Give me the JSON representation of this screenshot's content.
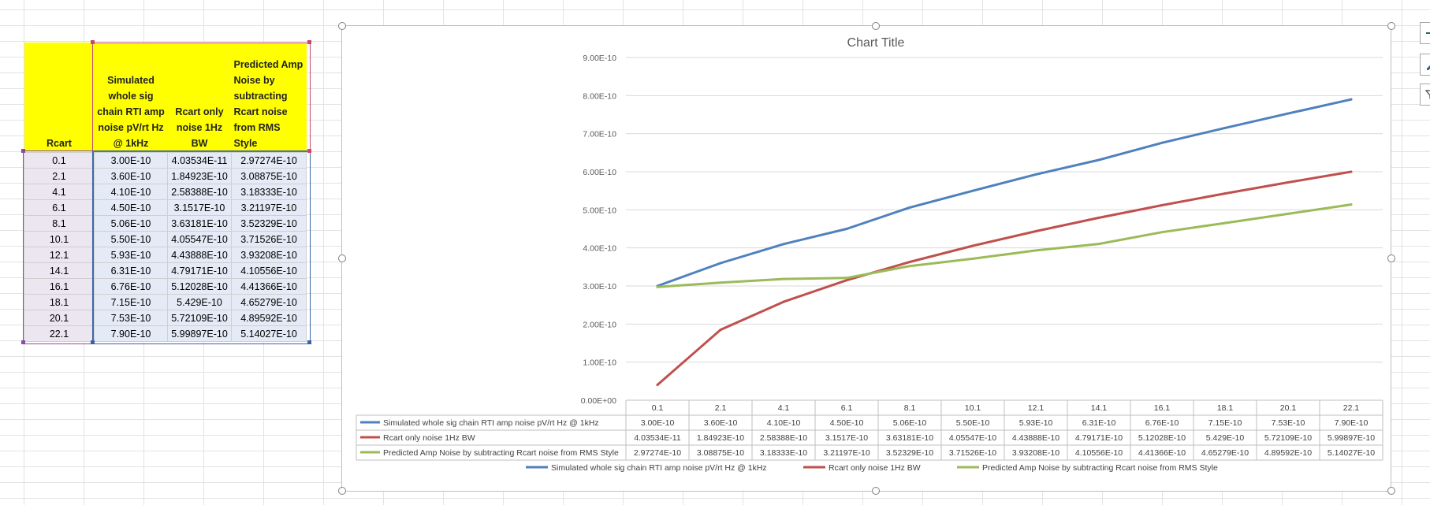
{
  "table": {
    "headers": [
      "Rcart",
      "Simulated whole sig chain RTI amp noise pV/rt Hz @ 1kHz",
      "Rcart only noise 1Hz BW",
      "Predicted Amp Noise by subtracting Rcart noise from RMS Style"
    ],
    "rows": [
      [
        "0.1",
        "3.00E-10",
        "4.03534E-11",
        "2.97274E-10"
      ],
      [
        "2.1",
        "3.60E-10",
        "1.84923E-10",
        "3.08875E-10"
      ],
      [
        "4.1",
        "4.10E-10",
        "2.58388E-10",
        "3.18333E-10"
      ],
      [
        "6.1",
        "4.50E-10",
        "3.1517E-10",
        "3.21197E-10"
      ],
      [
        "8.1",
        "5.06E-10",
        "3.63181E-10",
        "3.52329E-10"
      ],
      [
        "10.1",
        "5.50E-10",
        "4.05547E-10",
        "3.71526E-10"
      ],
      [
        "12.1",
        "5.93E-10",
        "4.43888E-10",
        "3.93208E-10"
      ],
      [
        "14.1",
        "6.31E-10",
        "4.79171E-10",
        "4.10556E-10"
      ],
      [
        "16.1",
        "6.76E-10",
        "5.12028E-10",
        "4.41366E-10"
      ],
      [
        "18.1",
        "7.15E-10",
        "5.429E-10",
        "4.65279E-10"
      ],
      [
        "20.1",
        "7.53E-10",
        "5.72109E-10",
        "4.89592E-10"
      ],
      [
        "22.1",
        "7.90E-10",
        "5.99897E-10",
        "5.14027E-10"
      ]
    ]
  },
  "chart_data": {
    "type": "line",
    "title": "Chart Title",
    "categories": [
      "0.1",
      "2.1",
      "4.1",
      "6.1",
      "8.1",
      "10.1",
      "12.1",
      "14.1",
      "16.1",
      "18.1",
      "20.1",
      "22.1"
    ],
    "ylim": [
      0,
      9e-10
    ],
    "y_ticks": [
      "0.00E+00",
      "1.00E-10",
      "2.00E-10",
      "3.00E-10",
      "4.00E-10",
      "5.00E-10",
      "6.00E-10",
      "7.00E-10",
      "8.00E-10",
      "9.00E-10"
    ],
    "grid": true,
    "legend_position": "bottom",
    "data_table": true,
    "series": [
      {
        "name": "Simulated whole sig chain RTI amp noise pV/rt Hz @ 1kHz",
        "color": "#4f81bd",
        "values": [
          3e-10,
          3.6e-10,
          4.1e-10,
          4.5e-10,
          5.06e-10,
          5.5e-10,
          5.93e-10,
          6.31e-10,
          6.76e-10,
          7.15e-10,
          7.53e-10,
          7.9e-10
        ],
        "labels": [
          "3.00E-10",
          "3.60E-10",
          "4.10E-10",
          "4.50E-10",
          "5.06E-10",
          "5.50E-10",
          "5.93E-10",
          "6.31E-10",
          "6.76E-10",
          "7.15E-10",
          "7.53E-10",
          "7.90E-10"
        ]
      },
      {
        "name": "Rcart only noise 1Hz BW",
        "color": "#c0504d",
        "values": [
          4.03534e-11,
          1.84923e-10,
          2.58388e-10,
          3.1517e-10,
          3.63181e-10,
          4.05547e-10,
          4.43888e-10,
          4.79171e-10,
          5.12028e-10,
          5.429e-10,
          5.72109e-10,
          5.99897e-10
        ],
        "labels": [
          "4.03534E-11",
          "1.84923E-10",
          "2.58388E-10",
          "3.1517E-10",
          "3.63181E-10",
          "4.05547E-10",
          "4.43888E-10",
          "4.79171E-10",
          "5.12028E-10",
          "5.429E-10",
          "5.72109E-10",
          "5.99897E-10"
        ]
      },
      {
        "name": "Predicted Amp Noise by subtracting Rcart noise from RMS Style",
        "color": "#9bbb59",
        "values": [
          2.97274e-10,
          3.08875e-10,
          3.18333e-10,
          3.21197e-10,
          3.52329e-10,
          3.71526e-10,
          3.93208e-10,
          4.10556e-10,
          4.41366e-10,
          4.65279e-10,
          4.89592e-10,
          5.14027e-10
        ],
        "labels": [
          "2.97274E-10",
          "3.08875E-10",
          "3.18333E-10",
          "3.21197E-10",
          "3.52329E-10",
          "3.71526E-10",
          "3.93208E-10",
          "4.10556E-10",
          "4.41366E-10",
          "4.65279E-10",
          "4.89592E-10",
          "5.14027E-10"
        ]
      }
    ]
  },
  "chart_tools": [
    "chart-elements-icon",
    "chart-styles-icon",
    "chart-filters-icon"
  ]
}
